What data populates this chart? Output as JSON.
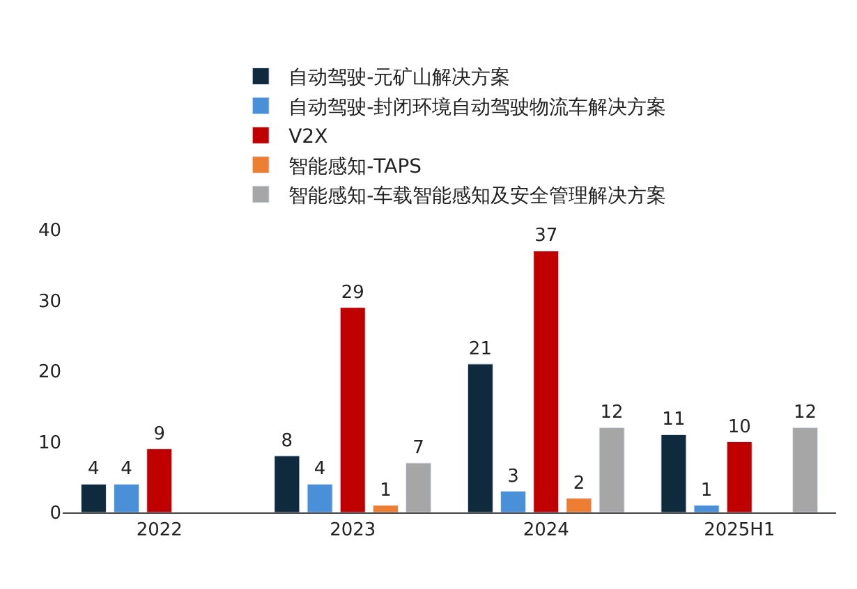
{
  "chart_data": {
    "type": "bar",
    "categories": [
      "2022",
      "2023",
      "2024",
      "2025H1"
    ],
    "series": [
      {
        "name": "自动驾驶-元矿山解决方案",
        "color": "#0e2a3c",
        "values": [
          4,
          8,
          21,
          11
        ]
      },
      {
        "name": "自动驾驶-封闭环境自动驾驶物流车解决方案",
        "color": "#4a90d9",
        "values": [
          4,
          4,
          3,
          1
        ]
      },
      {
        "name": "V2X",
        "color": "#c00000",
        "values": [
          9,
          29,
          37,
          10
        ]
      },
      {
        "name": "智能感知-TAPS",
        "color": "#ed7d31",
        "values": [
          null,
          1,
          2,
          null
        ]
      },
      {
        "name": "智能感知-车载智能感知及安全管理解决方案",
        "color": "#a6a6a6",
        "values": [
          null,
          7,
          12,
          12
        ]
      }
    ],
    "ylim": [
      0,
      40
    ],
    "yticks": [
      0,
      10,
      20,
      30,
      40
    ],
    "legend": "top",
    "data_labels": true
  }
}
